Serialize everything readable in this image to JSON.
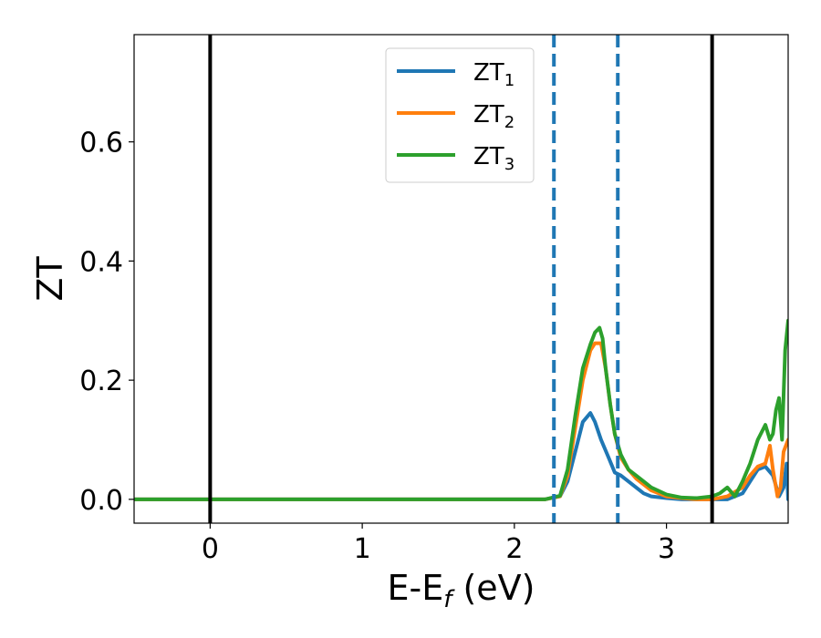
{
  "chart_data": {
    "type": "line",
    "xlabel_main": "E-E",
    "xlabel_sub": "f",
    "xlabel_unit": " (eV)",
    "ylabel": "ZT",
    "xlim": [
      -0.5,
      3.8
    ],
    "ylim": [
      -0.04,
      0.78
    ],
    "x_ticks": [
      0,
      1,
      2,
      3
    ],
    "x_tick_labels": [
      "0",
      "1",
      "2",
      "3"
    ],
    "y_ticks": [
      0.0,
      0.2,
      0.4,
      0.6
    ],
    "y_tick_labels": [
      "0.0",
      "0.2",
      "0.4",
      "0.6"
    ],
    "grid": false,
    "legend_position": "top-center",
    "reference_lines": [
      {
        "x": 0.0,
        "style": "solid",
        "color": "#000000"
      },
      {
        "x": 3.3,
        "style": "solid",
        "color": "#000000"
      },
      {
        "x": 2.26,
        "style": "dashed",
        "color": "#1f77b4"
      },
      {
        "x": 2.68,
        "style": "dashed",
        "color": "#1f77b4"
      }
    ],
    "series": [
      {
        "name_main": "ZT",
        "name_sub": "1",
        "color": "#1f77b4",
        "x": [
          -0.5,
          2.2,
          2.3,
          2.35,
          2.4,
          2.45,
          2.5,
          2.53,
          2.57,
          2.62,
          2.66,
          2.7,
          2.75,
          2.8,
          2.85,
          2.9,
          3.0,
          3.1,
          3.2,
          3.3,
          3.4,
          3.5,
          3.55,
          3.6,
          3.65,
          3.7,
          3.74,
          3.77,
          3.79,
          3.8
        ],
        "y": [
          0.0,
          0.0,
          0.005,
          0.03,
          0.08,
          0.13,
          0.145,
          0.13,
          0.1,
          0.07,
          0.045,
          0.04,
          0.03,
          0.02,
          0.01,
          0.005,
          0.002,
          0.0,
          0.0,
          0.0,
          0.0,
          0.01,
          0.03,
          0.05,
          0.055,
          0.04,
          0.005,
          0.02,
          0.06,
          0.0
        ]
      },
      {
        "name_main": "ZT",
        "name_sub": "2",
        "color": "#ff7f0e",
        "x": [
          -0.5,
          2.2,
          2.3,
          2.35,
          2.4,
          2.45,
          2.5,
          2.53,
          2.57,
          2.6,
          2.63,
          2.66,
          2.7,
          2.75,
          2.8,
          2.9,
          3.0,
          3.1,
          3.2,
          3.3,
          3.4,
          3.5,
          3.55,
          3.6,
          3.65,
          3.68,
          3.7,
          3.73,
          3.75,
          3.77,
          3.8
        ],
        "y": [
          0.0,
          0.0,
          0.005,
          0.04,
          0.12,
          0.2,
          0.25,
          0.262,
          0.262,
          0.22,
          0.16,
          0.11,
          0.07,
          0.05,
          0.035,
          0.015,
          0.005,
          0.002,
          0.0,
          0.0,
          0.005,
          0.02,
          0.04,
          0.055,
          0.06,
          0.09,
          0.05,
          0.005,
          0.02,
          0.08,
          0.1
        ]
      },
      {
        "name_main": "ZT",
        "name_sub": "3",
        "color": "#2ca02c",
        "x": [
          -0.5,
          2.2,
          2.3,
          2.35,
          2.4,
          2.45,
          2.5,
          2.53,
          2.56,
          2.58,
          2.6,
          2.63,
          2.66,
          2.7,
          2.75,
          2.8,
          2.85,
          2.9,
          3.0,
          3.1,
          3.2,
          3.3,
          3.35,
          3.4,
          3.45,
          3.5,
          3.55,
          3.6,
          3.65,
          3.68,
          3.7,
          3.72,
          3.74,
          3.76,
          3.78,
          3.8
        ],
        "y": [
          0.0,
          0.0,
          0.006,
          0.05,
          0.14,
          0.22,
          0.26,
          0.28,
          0.288,
          0.27,
          0.22,
          0.16,
          0.11,
          0.075,
          0.05,
          0.04,
          0.03,
          0.02,
          0.008,
          0.003,
          0.002,
          0.005,
          0.01,
          0.02,
          0.005,
          0.03,
          0.06,
          0.1,
          0.125,
          0.1,
          0.11,
          0.15,
          0.17,
          0.1,
          0.25,
          0.3
        ]
      }
    ]
  }
}
